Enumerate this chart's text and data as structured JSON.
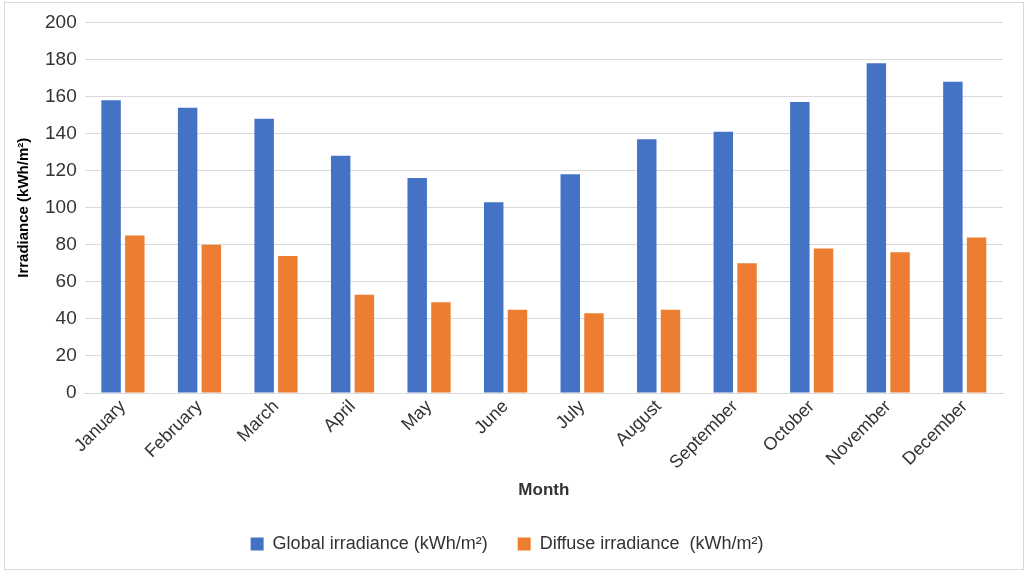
{
  "chart_data": {
    "type": "bar",
    "xlabel": "Month",
    "ylabel": "Irradiance (kWh/m²)",
    "categories": [
      "January",
      "February",
      "March",
      "April",
      "May",
      "June",
      "July",
      "August",
      "September",
      "October",
      "November",
      "December"
    ],
    "series": [
      {
        "name": "Global irradiance (kWh/m²)",
        "color": "#4472c4",
        "values": [
          158,
          154,
          148,
          128,
          116,
          103,
          118,
          137,
          141,
          157,
          178,
          168
        ]
      },
      {
        "name": "Diffuse irradiance  (kWh/m²)",
        "color": "#ed7d31",
        "values": [
          85,
          80,
          74,
          53,
          49,
          45,
          43,
          45,
          70,
          78,
          76,
          84
        ]
      }
    ],
    "ylim": [
      0,
      200
    ],
    "yticks": [
      0,
      20,
      40,
      60,
      80,
      100,
      120,
      140,
      160,
      180,
      200
    ],
    "grid": "y",
    "legend": "bottom"
  }
}
